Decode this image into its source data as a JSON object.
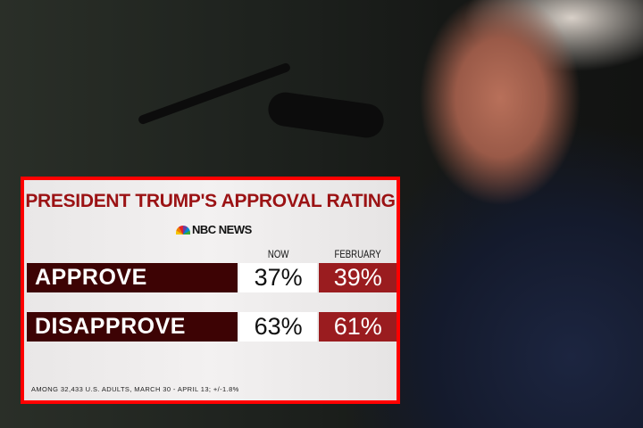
{
  "chart_data": {
    "type": "table",
    "title": "PRESIDENT TRUMP'S APPROVAL RATING",
    "source": "NBC NEWS",
    "columns": [
      "NOW",
      "FEBRUARY"
    ],
    "rows": [
      {
        "label": "APPROVE",
        "values": [
          "37%",
          "39%"
        ]
      },
      {
        "label": "DISAPPROVE",
        "values": [
          "63%",
          "61%"
        ]
      }
    ],
    "footnote": "AMONG 32,433 U.S. ADULTS, MARCH 30 - APRIL 13; +/-1.8%"
  },
  "colors": {
    "border": "#ff0000",
    "title": "#9b1214",
    "label_bg": "#3d0304",
    "february_bg": "#9a1c1f"
  }
}
